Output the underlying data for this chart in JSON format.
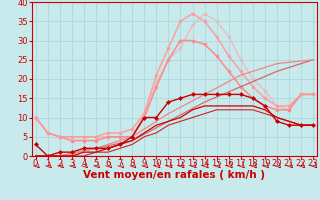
{
  "xlabel": "Vent moyen/en rafales ( km/h )",
  "xlim": [
    -0.3,
    23.3
  ],
  "ylim": [
    0,
    40
  ],
  "xticks": [
    0,
    1,
    2,
    3,
    4,
    5,
    6,
    7,
    8,
    9,
    10,
    11,
    12,
    13,
    14,
    15,
    16,
    17,
    18,
    19,
    20,
    21,
    22,
    23
  ],
  "yticks": [
    0,
    5,
    10,
    15,
    20,
    25,
    30,
    35,
    40
  ],
  "background_color": "#c8eaec",
  "grid_color": "#add8db",
  "series": [
    {
      "x": [
        0,
        1,
        2,
        3,
        4,
        5,
        6,
        7,
        8,
        9,
        10,
        11,
        12,
        13,
        14,
        15,
        16,
        17,
        18,
        19,
        20,
        21,
        22,
        23
      ],
      "y": [
        3,
        0,
        1,
        1,
        2,
        2,
        2,
        3,
        5,
        10,
        10,
        14,
        15,
        16,
        16,
        16,
        16,
        16,
        15,
        13,
        9,
        8,
        8,
        8
      ],
      "color": "#cc0000",
      "linewidth": 1.0,
      "marker": "D",
      "markersize": 2.0,
      "alpha": 1.0,
      "zorder": 6
    },
    {
      "x": [
        0,
        1,
        2,
        3,
        4,
        5,
        6,
        7,
        8,
        9,
        10,
        11,
        12,
        13,
        14,
        15,
        16,
        17,
        18,
        19,
        20,
        21,
        22,
        23
      ],
      "y": [
        0,
        0,
        0,
        0,
        1,
        1,
        2,
        3,
        4,
        6,
        8,
        9,
        10,
        12,
        13,
        13,
        13,
        13,
        13,
        12,
        10,
        9,
        8,
        8
      ],
      "color": "#cc0000",
      "linewidth": 0.9,
      "marker": null,
      "markersize": 0,
      "alpha": 1.0,
      "zorder": 5
    },
    {
      "x": [
        0,
        1,
        2,
        3,
        4,
        5,
        6,
        7,
        8,
        9,
        10,
        11,
        12,
        13,
        14,
        15,
        16,
        17,
        18,
        19,
        20,
        21,
        22,
        23
      ],
      "y": [
        0,
        0,
        0,
        0,
        0,
        1,
        1,
        2,
        3,
        5,
        6,
        8,
        9,
        10,
        11,
        12,
        12,
        12,
        12,
        11,
        10,
        9,
        8,
        8
      ],
      "color": "#cc2222",
      "linewidth": 0.8,
      "marker": null,
      "markersize": 0,
      "alpha": 1.0,
      "zorder": 4
    },
    {
      "x": [
        0,
        2,
        5,
        8,
        11,
        14,
        17,
        20,
        23
      ],
      "y": [
        0,
        0,
        2,
        4,
        9,
        14,
        18,
        22,
        25
      ],
      "color": "#dd6666",
      "linewidth": 0.9,
      "marker": null,
      "markersize": 0,
      "alpha": 1.0,
      "zorder": 3
    },
    {
      "x": [
        0,
        2,
        5,
        8,
        11,
        14,
        17,
        20,
        23
      ],
      "y": [
        0,
        0,
        2,
        5,
        11,
        16,
        21,
        24,
        25
      ],
      "color": "#ee8888",
      "linewidth": 0.9,
      "marker": null,
      "markersize": 0,
      "alpha": 1.0,
      "zorder": 3
    },
    {
      "x": [
        0,
        1,
        2,
        3,
        4,
        5,
        6,
        7,
        8,
        9,
        10,
        11,
        12,
        13,
        14,
        15,
        16,
        17,
        18,
        19,
        20,
        21,
        22,
        23
      ],
      "y": [
        10,
        6,
        5,
        4,
        4,
        4,
        5,
        5,
        5,
        10,
        18,
        25,
        30,
        30,
        29,
        26,
        22,
        18,
        15,
        13,
        12,
        12,
        16,
        16
      ],
      "color": "#ff8888",
      "linewidth": 1.1,
      "marker": "o",
      "markersize": 2.0,
      "alpha": 1.0,
      "zorder": 2
    },
    {
      "x": [
        0,
        1,
        2,
        3,
        4,
        5,
        6,
        7,
        8,
        9,
        10,
        11,
        12,
        13,
        14,
        15,
        16,
        17,
        18,
        19,
        20,
        21,
        22,
        23
      ],
      "y": [
        10,
        6,
        5,
        5,
        5,
        5,
        6,
        6,
        7,
        11,
        21,
        28,
        35,
        37,
        35,
        31,
        26,
        22,
        18,
        15,
        13,
        13,
        16,
        16
      ],
      "color": "#ff9999",
      "linewidth": 1.1,
      "marker": "o",
      "markersize": 2.0,
      "alpha": 0.9,
      "zorder": 2
    },
    {
      "x": [
        0,
        1,
        2,
        3,
        4,
        5,
        6,
        7,
        8,
        9,
        10,
        11,
        12,
        13,
        14,
        15,
        16,
        17,
        18,
        19,
        20,
        21,
        22,
        23
      ],
      "y": [
        10,
        6,
        5,
        5,
        5,
        5,
        5,
        5,
        5,
        11,
        19,
        25,
        28,
        34,
        37,
        35,
        31,
        25,
        20,
        17,
        13,
        12,
        16,
        16
      ],
      "color": "#ffaaaa",
      "linewidth": 1.0,
      "marker": "o",
      "markersize": 2.0,
      "alpha": 0.75,
      "zorder": 1
    }
  ],
  "xlabel_color": "#cc0000",
  "xlabel_fontsize": 7.5,
  "tick_fontsize": 6,
  "tick_color": "#cc0000",
  "spine_color": "#cc0000",
  "arrow_color": "#cc0000"
}
